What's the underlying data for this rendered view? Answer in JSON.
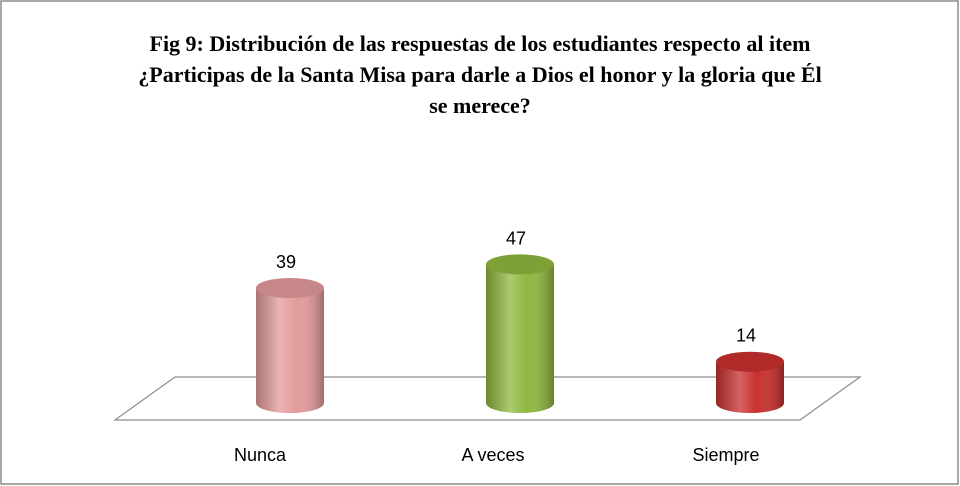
{
  "chart_data": {
    "type": "bar3d",
    "title": "Fig 9: Distribución de las respuestas de los estudiantes respecto al item ¿Participas de la Santa Misa para darle a Dios el honor y la gloria que Él se merece?",
    "categories": [
      "Nunca",
      "A veces",
      "Siempre"
    ],
    "values": [
      39,
      47,
      14
    ],
    "colors": [
      "#e39a9b",
      "#8fb83f",
      "#c8302e"
    ]
  }
}
